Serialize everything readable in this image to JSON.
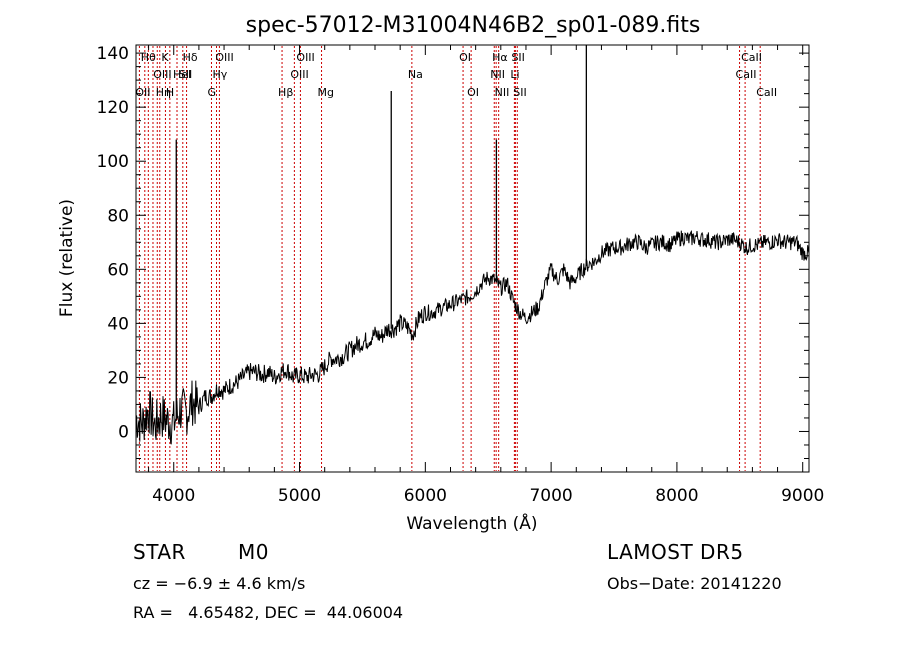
{
  "chart_data": {
    "type": "line",
    "title": "spec-57012-M31004N46B2_sp01-089.fits",
    "xlabel": "Wavelength (Å)",
    "ylabel": "Flux (relative)",
    "xlim": [
      3700,
      9050
    ],
    "ylim": [
      -15,
      143
    ],
    "xticks": [
      4000,
      5000,
      6000,
      7000,
      8000,
      9000
    ],
    "yticks": [
      0,
      20,
      40,
      60,
      80,
      100,
      120,
      140
    ],
    "grid": false,
    "series": [
      {
        "points": [
          [
            3700,
            5
          ],
          [
            3750,
            3
          ],
          [
            3800,
            8
          ],
          [
            3850,
            2
          ],
          [
            3900,
            6
          ],
          [
            3950,
            4
          ],
          [
            4000,
            3
          ],
          [
            4050,
            8
          ],
          [
            4100,
            7
          ],
          [
            4150,
            11
          ],
          [
            4200,
            9
          ],
          [
            4250,
            13
          ],
          [
            4300,
            13
          ],
          [
            4350,
            16
          ],
          [
            4400,
            15
          ],
          [
            4450,
            17
          ],
          [
            4500,
            18
          ],
          [
            4550,
            20
          ],
          [
            4600,
            22
          ],
          [
            4650,
            22
          ],
          [
            4700,
            21
          ],
          [
            4750,
            22
          ],
          [
            4800,
            20
          ],
          [
            4850,
            22
          ],
          [
            4900,
            23
          ],
          [
            4950,
            20
          ],
          [
            5000,
            21
          ],
          [
            5050,
            20
          ],
          [
            5100,
            21
          ],
          [
            5150,
            21
          ],
          [
            5200,
            24
          ],
          [
            5250,
            27
          ],
          [
            5300,
            27
          ],
          [
            5350,
            28
          ],
          [
            5400,
            30
          ],
          [
            5450,
            32
          ],
          [
            5500,
            33
          ],
          [
            5550,
            34
          ],
          [
            5600,
            36
          ],
          [
            5650,
            35
          ],
          [
            5700,
            38
          ],
          [
            5750,
            38
          ],
          [
            5800,
            40
          ],
          [
            5850,
            39
          ],
          [
            5900,
            36
          ],
          [
            5950,
            42
          ],
          [
            6000,
            44
          ],
          [
            6050,
            44
          ],
          [
            6100,
            45
          ],
          [
            6150,
            46
          ],
          [
            6200,
            47
          ],
          [
            6250,
            48
          ],
          [
            6300,
            49
          ],
          [
            6350,
            50
          ],
          [
            6400,
            52
          ],
          [
            6450,
            55
          ],
          [
            6500,
            57
          ],
          [
            6550,
            56
          ],
          [
            6600,
            53
          ],
          [
            6650,
            55
          ],
          [
            6700,
            48
          ],
          [
            6750,
            44
          ],
          [
            6800,
            42
          ],
          [
            6850,
            44
          ],
          [
            6900,
            46
          ],
          [
            6950,
            54
          ],
          [
            7000,
            60
          ],
          [
            7050,
            56
          ],
          [
            7100,
            60
          ],
          [
            7150,
            55
          ],
          [
            7200,
            57
          ],
          [
            7250,
            60
          ],
          [
            7300,
            62
          ],
          [
            7350,
            63
          ],
          [
            7400,
            66
          ],
          [
            7450,
            67
          ],
          [
            7500,
            68
          ],
          [
            7550,
            68
          ],
          [
            7600,
            69
          ],
          [
            7650,
            70
          ],
          [
            7700,
            70
          ],
          [
            7750,
            68
          ],
          [
            7800,
            69
          ],
          [
            7850,
            70
          ],
          [
            7900,
            70
          ],
          [
            7950,
            69
          ],
          [
            8000,
            71
          ],
          [
            8050,
            72
          ],
          [
            8100,
            71
          ],
          [
            8150,
            72
          ],
          [
            8200,
            71
          ],
          [
            8250,
            71
          ],
          [
            8300,
            70
          ],
          [
            8350,
            70
          ],
          [
            8400,
            71
          ],
          [
            8450,
            71
          ],
          [
            8500,
            70
          ],
          [
            8550,
            68
          ],
          [
            8600,
            69
          ],
          [
            8650,
            69
          ],
          [
            8700,
            70
          ],
          [
            8750,
            70
          ],
          [
            8800,
            71
          ],
          [
            8850,
            70
          ],
          [
            8900,
            70
          ],
          [
            8950,
            70
          ],
          [
            9000,
            66
          ],
          [
            9050,
            66
          ]
        ],
        "spikes": [
          {
            "x": 4020,
            "y": 108
          },
          {
            "x": 5729,
            "y": 126
          },
          {
            "x": 6565,
            "y": 108
          },
          {
            "x": 7280,
            "y": 143
          }
        ]
      }
    ],
    "lines": [
      {
        "x": 3727,
        "label": "OII",
        "row": 2
      },
      {
        "x": 3770,
        "label": "Hθ",
        "row": 0
      },
      {
        "x": 3798,
        "label": "",
        "row": -1
      },
      {
        "x": 3835,
        "label": "",
        "row": -1
      },
      {
        "x": 3869,
        "label": "OIII",
        "row": 1
      },
      {
        "x": 3889,
        "label": "Hη",
        "row": 2
      },
      {
        "x": 3934,
        "label": "K",
        "row": 0
      },
      {
        "x": 3969,
        "label": "H",
        "row": 2
      },
      {
        "x": 4026,
        "label": "HeI",
        "row": 1
      },
      {
        "x": 4072,
        "label": "SII",
        "row": 1
      },
      {
        "x": 4102,
        "label": "Hδ",
        "row": 0
      },
      {
        "x": 4300,
        "label": "G",
        "row": 2
      },
      {
        "x": 4340,
        "label": "Hγ",
        "row": 1
      },
      {
        "x": 4363,
        "label": "OIII",
        "row": 0
      },
      {
        "x": 4861,
        "label": "Hβ",
        "row": 2
      },
      {
        "x": 4959,
        "label": "OIII",
        "row": 1
      },
      {
        "x": 5007,
        "label": "OIII",
        "row": 0
      },
      {
        "x": 5175,
        "label": "Mg",
        "row": 2
      },
      {
        "x": 5893,
        "label": "Na",
        "row": 1
      },
      {
        "x": 6300,
        "label": "OI",
        "row": 0
      },
      {
        "x": 6364,
        "label": "OI",
        "row": 2
      },
      {
        "x": 6548,
        "label": "NII",
        "row": 1
      },
      {
        "x": 6563,
        "label": "Hα",
        "row": 0
      },
      {
        "x": 6583,
        "label": "NII",
        "row": 2
      },
      {
        "x": 6708,
        "label": "Li",
        "row": 1
      },
      {
        "x": 6716,
        "label": "SII",
        "row": 0
      },
      {
        "x": 6731,
        "label": "SII",
        "row": 2
      },
      {
        "x": 8498,
        "label": "CaII",
        "row": 1
      },
      {
        "x": 8542,
        "label": "CaII",
        "row": 0
      },
      {
        "x": 8662,
        "label": "CaII",
        "row": 2
      }
    ]
  },
  "info": {
    "class": "STAR",
    "subclass": "M0",
    "survey": "LAMOST DR5",
    "cz": "cz = −6.9 ± 4.6 km/s",
    "obs_date": "Obs−Date: 20141220",
    "coords": "RA =   4.65482, DEC =  44.06004"
  },
  "colors": {
    "spectrum": "#000000",
    "line_markers": "#cc0000"
  }
}
